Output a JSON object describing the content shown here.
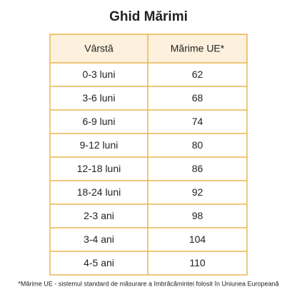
{
  "title": "Ghid Mărimi",
  "table": {
    "header": [
      "Vârstă",
      "Mărime UE*"
    ],
    "rows": [
      [
        "0-3 luni",
        62
      ],
      [
        "3-6 luni",
        68
      ],
      [
        "6-9 luni",
        74
      ],
      [
        "9-12 luni",
        80
      ],
      [
        "12-18 luni",
        86
      ],
      [
        "18-24 luni",
        92
      ],
      [
        "2-3 ani",
        98
      ],
      [
        "3-4 ani",
        104
      ],
      [
        "4-5 ani",
        110
      ]
    ]
  },
  "footnote": "*Mărime UE - sistemul standard de măsurare a îmbrăcămintei folosit în Uniunea Europeană"
}
